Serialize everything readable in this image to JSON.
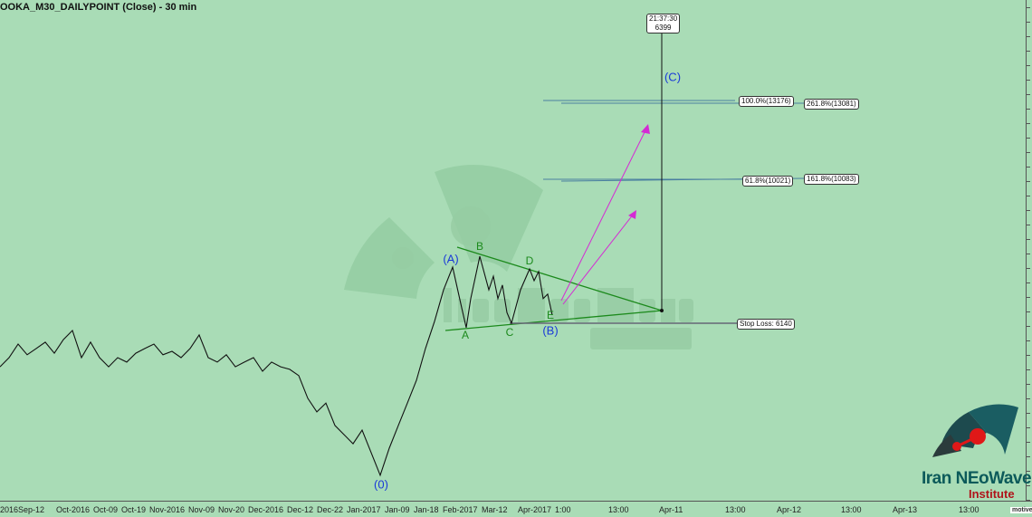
{
  "title": "OOKA_M30_DAILYPOINT (Close) - 30 min",
  "watermark": {
    "text": "Iran NEoWave",
    "sub": "Institute"
  },
  "logo": {
    "text": "Iran NEoWave",
    "sub": "Institute"
  },
  "footer_brand": "motivewave",
  "colors": {
    "background": "#a9dcb6",
    "price": "#111111",
    "triangle": "#1c8a1c",
    "wave_labels": "#1a3ad8",
    "arrows": "#d42ad4",
    "fib": "#4a7fa0"
  },
  "chart_data": {
    "type": "line",
    "title": "OOKA_M30_DAILYPOINT (Close) - 30 min",
    "x_tick_labels": [
      "2016Sep-12",
      "Oct-2016",
      "Oct-09",
      "Oct-19",
      "Nov-2016",
      "Nov-09",
      "Nov-20",
      "Dec-2016",
      "Dec-12",
      "Dec-22",
      "Jan-2017",
      "Jan-09",
      "Jan-18",
      "Feb-2017",
      "Mar-12",
      "Apr-2017",
      "1:00",
      "13:00",
      "Apr-11",
      "13:00",
      "Apr-12",
      "13:00",
      "Apr-13",
      "13:00"
    ],
    "series": [
      {
        "values": [
          4760,
          5050,
          5480,
          5140,
          5340,
          5540,
          5190,
          5620,
          5910,
          5050,
          5540,
          5050,
          4760,
          5050,
          4910,
          5190,
          5340,
          5480,
          5140,
          5250,
          5050,
          5340,
          5770,
          5050,
          4910,
          5140,
          4760,
          4910,
          5050,
          4620,
          4910,
          4760,
          4680,
          4480,
          3760,
          3330,
          3610,
          2900,
          2610,
          2320,
          2750,
          2040,
          1320,
          2180,
          2900,
          3610,
          4330,
          5340,
          6200,
          7200,
          7920,
          6630,
          6000,
          6920,
          8260,
          7200,
          7630,
          6920,
          7350,
          6480,
          6140,
          7200,
          7860,
          7490,
          7780,
          6920,
          7060,
          6400
        ]
      }
    ],
    "wave_labels": {
      "outer": [
        "(0)",
        "(A)",
        "(B)",
        "(C)"
      ],
      "inner": [
        "A",
        "B",
        "C",
        "D",
        "E"
      ]
    },
    "fibonacci": [
      {
        "label": "100.0%(13176)",
        "value": 13176
      },
      {
        "label": "261.8%(13081)",
        "value": 13081
      },
      {
        "label": "61.8%(10021)",
        "value": 10021
      },
      {
        "label": "161.8%(10083)",
        "value": 10083
      }
    ],
    "stop_loss": {
      "label": "Stop Loss: 6140",
      "value": 6140
    },
    "time_marker": {
      "time": "21:37:30",
      "value": "6399"
    },
    "grid": false
  }
}
